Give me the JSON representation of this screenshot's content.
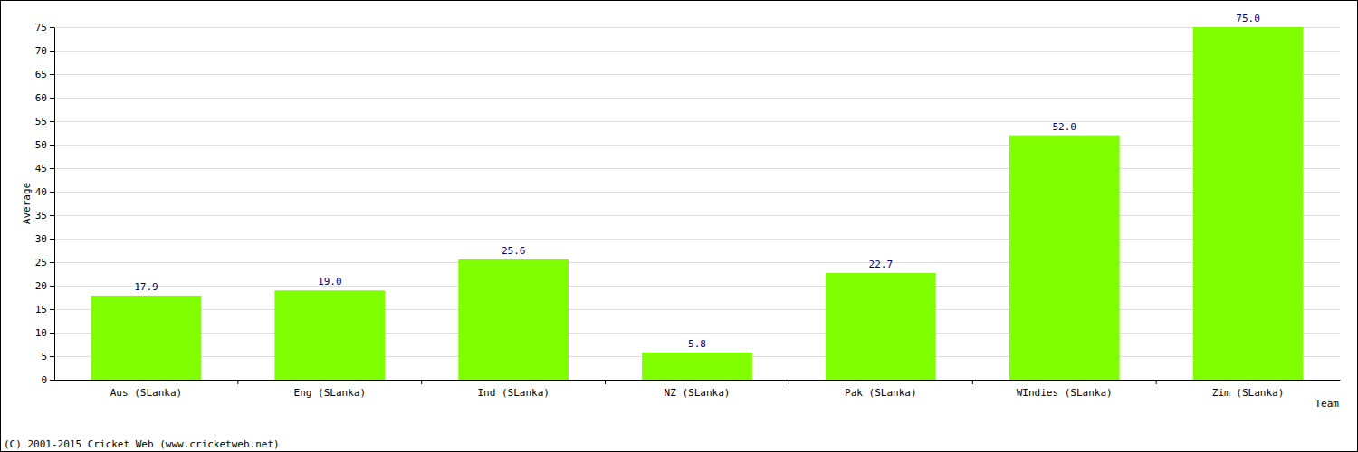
{
  "chart_data": {
    "type": "bar",
    "categories": [
      "Aus (SLanka)",
      "Eng (SLanka)",
      "Ind (SLanka)",
      "NZ (SLanka)",
      "Pak (SLanka)",
      "WIndies (SLanka)",
      "Zim (SLanka)"
    ],
    "values": [
      17.9,
      19,
      25.6,
      5.8,
      22.7,
      52,
      75
    ],
    "value_labels": [
      "17.9",
      "19.0",
      "25.6",
      "5.8",
      "22.7",
      "52.0",
      "75.0"
    ],
    "data_labels": true,
    "color": "#7fff00",
    "x_label": "Team",
    "y_label": "Average",
    "ylim": [
      0,
      75
    ],
    "yticks": [
      0,
      5,
      10,
      15,
      20,
      25,
      30,
      35,
      40,
      45,
      50,
      55,
      60,
      65,
      70,
      75
    ],
    "grid": true,
    "annotations": [
      "(C) 2001-2015 Cricket Web (www.cricketweb.net)"
    ]
  }
}
